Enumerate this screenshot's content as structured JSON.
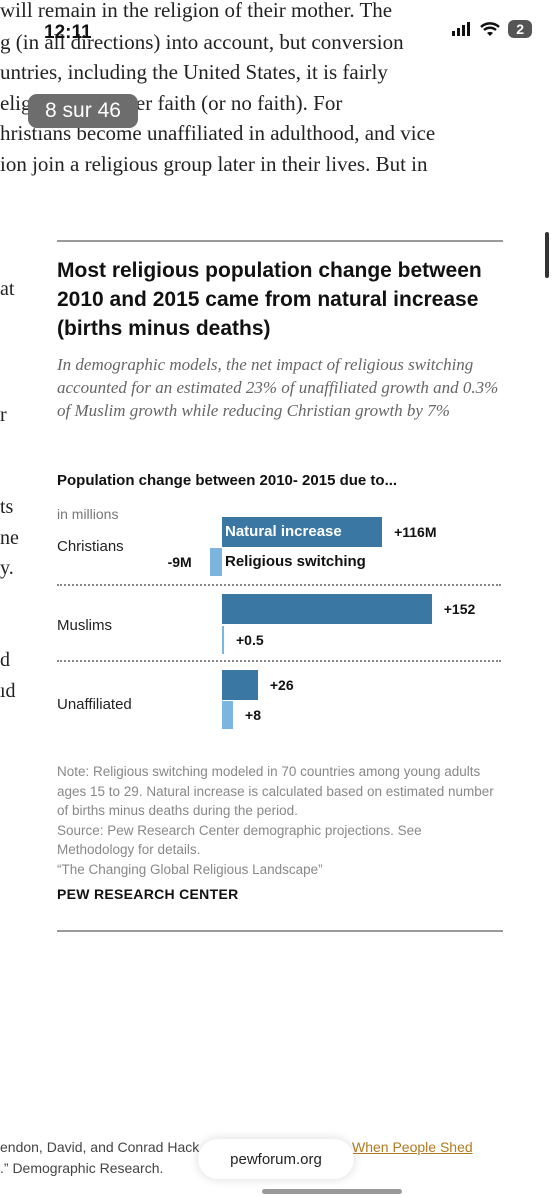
{
  "status_bar": {
    "time": "12:11",
    "battery": "2"
  },
  "page_indicator": "8 sur 46",
  "article_top_lines": [
    "will remain in the religion of their mother. The",
    "g (in all directions) into account, but conversion",
    "untries, including the United States, it is fairly",
    "elig            tch to another faith (or no faith). For",
    "hristians become unaffiliated in adulthood, and vice",
    "ion join a religious group later in their lives. But in"
  ],
  "left_fragments": [
    "at",
    "r",
    "ts",
    "ne",
    "y.",
    "d",
    "ıd"
  ],
  "figure": {
    "title": "Most religious population change between 2010 and 2015 came from natural increase (births minus deaths)",
    "subtitle": "In demographic models, the net impact of religious switching accounted for an estimated 23% of unaffiliated growth and 0.3% of Muslim growth while reducing Christian growth by 7%",
    "chart_heading": "Population change between 2010- 2015 due to...",
    "units": "in millions",
    "note": "Note: Religious switching modeled in 70 countries among young adults ages 15 to 29. Natural increase is calculated based on estimated number of births minus deaths during the period.",
    "source": "Source: Pew Research Center demographic projections. See Methodology for details.",
    "report": "“The Changing Global Religious Landscape”",
    "publisher": "PEW RESEARCH CENTER"
  },
  "chart_data": {
    "type": "bar",
    "categories": [
      "Christians",
      "Muslims",
      "Unaffiliated"
    ],
    "series": [
      {
        "name": "Natural increase",
        "values": [
          116,
          152,
          26
        ],
        "labels": [
          "+116M",
          "+152",
          "+26"
        ],
        "color": "#3a78a3"
      },
      {
        "name": "Religious switching",
        "values": [
          -9,
          0.5,
          8
        ],
        "labels": [
          "-9M",
          "+0.5",
          "+8"
        ],
        "color": "#7cb6df"
      }
    ],
    "xlim": [
      -9,
      152
    ]
  },
  "bottom": {
    "left_line1": "endon, David, and Conrad Hack",
    "left_line2": ".” Demographic Research.",
    "link_text": "When People Shed",
    "url": "pewforum.org"
  }
}
